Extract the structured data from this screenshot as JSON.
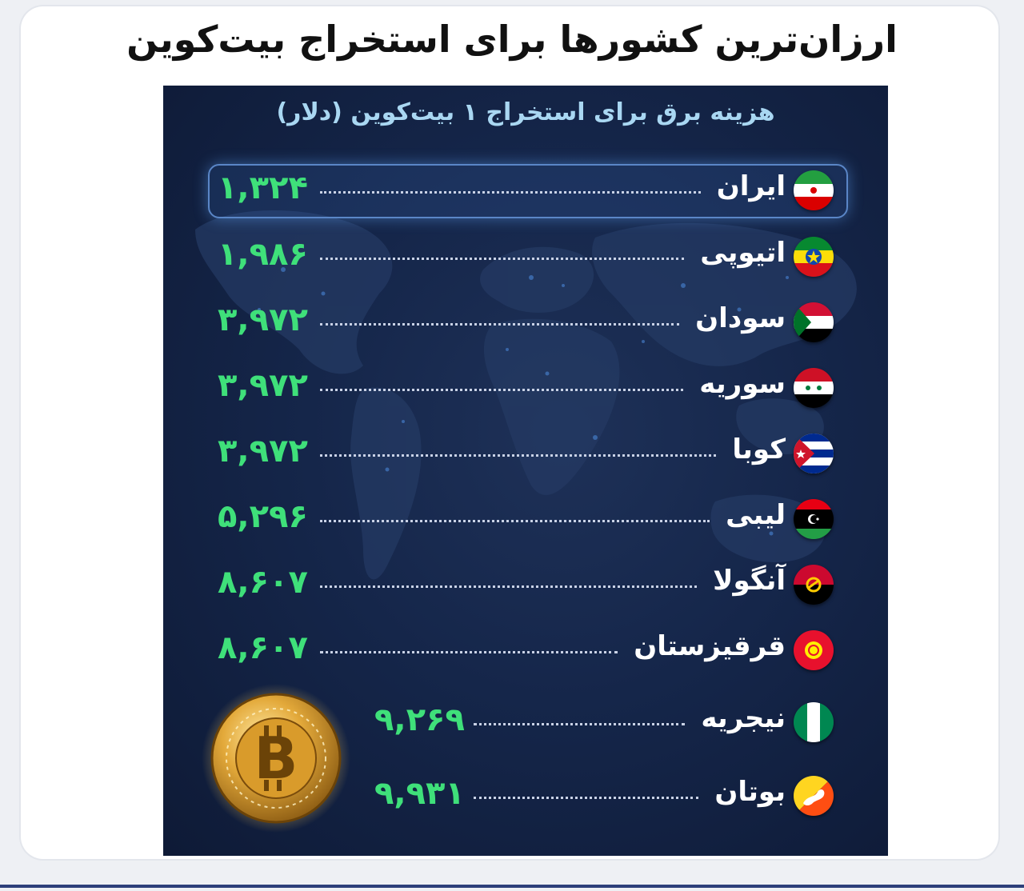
{
  "title": "ارزان‌ترین کشورها برای استخراج بیت‌کوین",
  "chart_data": {
    "type": "table",
    "subtitle": "هزینه برق برای استخراج ۱ بیت‌کوین (دلار)",
    "categories": [
      "ایران",
      "اتیوپی",
      "سودان",
      "سوریه",
      "کوبا",
      "لیبی",
      "آنگولا",
      "قرقیزستان",
      "نیجریه",
      "بوتان"
    ],
    "values": [
      1324,
      1986,
      3972,
      3972,
      3972,
      5296,
      8607,
      8607,
      9269,
      9931
    ],
    "value_labels": [
      "۱,۳۲۴",
      "۱,۹۸۶",
      "۳,۹۷۲",
      "۳,۹۷۲",
      "۳,۹۷۲",
      "۵,۲۹۶",
      "۸,۶۰۷",
      "۸,۶۰۷",
      "۹,۲۶۹",
      "۹,۹۳۱"
    ],
    "flags": [
      "iran",
      "ethiopia",
      "sudan",
      "syria",
      "cuba",
      "libya",
      "angola",
      "kyrgyzstan",
      "nigeria",
      "bhutan"
    ],
    "highlighted": "ایران",
    "colors": {
      "value": "#3fe07a",
      "background": "#15264a",
      "subtitle": "#a9d7f2",
      "highlight_border": "#5a86c7"
    }
  },
  "icons": {
    "coin": "bitcoin-coin-icon"
  }
}
